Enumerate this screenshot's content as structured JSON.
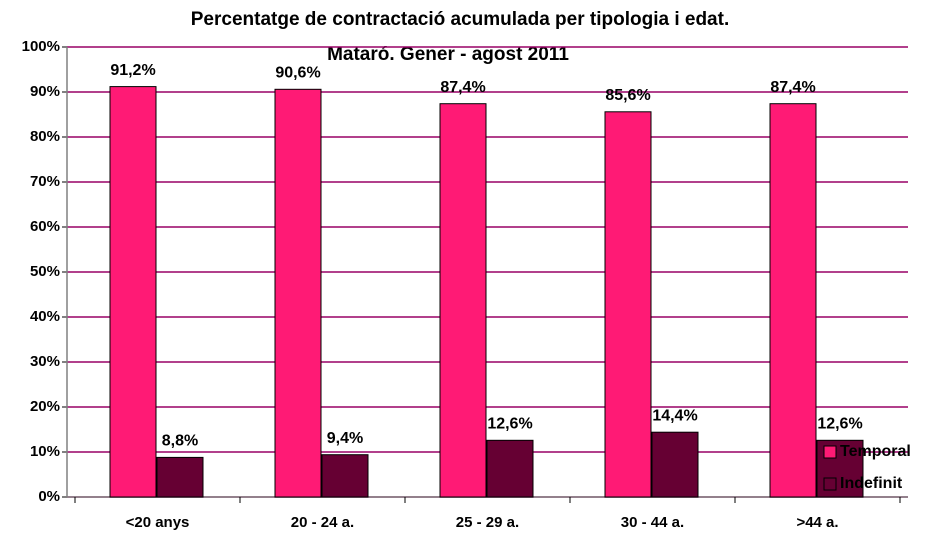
{
  "chart_data": {
    "type": "bar",
    "title": "Percentatge de contractació acumulada per tipologia i edat.",
    "subtitle": "Mataró. Gener - agost 2011",
    "categories": [
      "<20 anys",
      "20 - 24 a.",
      "25 - 29 a.",
      "30 - 44 a.",
      ">44 a."
    ],
    "series": [
      {
        "name": "Temporal",
        "color": "#ff1a75",
        "values": [
          91.2,
          90.6,
          87.4,
          85.6,
          87.4
        ],
        "value_labels": [
          "91,2%",
          "90,6%",
          "87,4%",
          "85,6%",
          "87,4%"
        ]
      },
      {
        "name": "Indefinit",
        "color": "#660033",
        "values": [
          8.8,
          9.4,
          12.6,
          14.4,
          12.6
        ],
        "value_labels": [
          "8,8%",
          "9,4%",
          "12,6%",
          "14,4%",
          "12,6%"
        ]
      }
    ],
    "ylim": [
      0,
      100
    ],
    "yticks": [
      {
        "value": 0,
        "label": "0%"
      },
      {
        "value": 10,
        "label": "10%"
      },
      {
        "value": 20,
        "label": "20%"
      },
      {
        "value": 30,
        "label": "30%"
      },
      {
        "value": 40,
        "label": "40%"
      },
      {
        "value": 50,
        "label": "50%"
      },
      {
        "value": 60,
        "label": "60%"
      },
      {
        "value": 70,
        "label": "70%"
      },
      {
        "value": 80,
        "label": "80%"
      },
      {
        "value": 90,
        "label": "90%"
      },
      {
        "value": 100,
        "label": "100%"
      }
    ],
    "grid": true,
    "legend": "lower right"
  }
}
